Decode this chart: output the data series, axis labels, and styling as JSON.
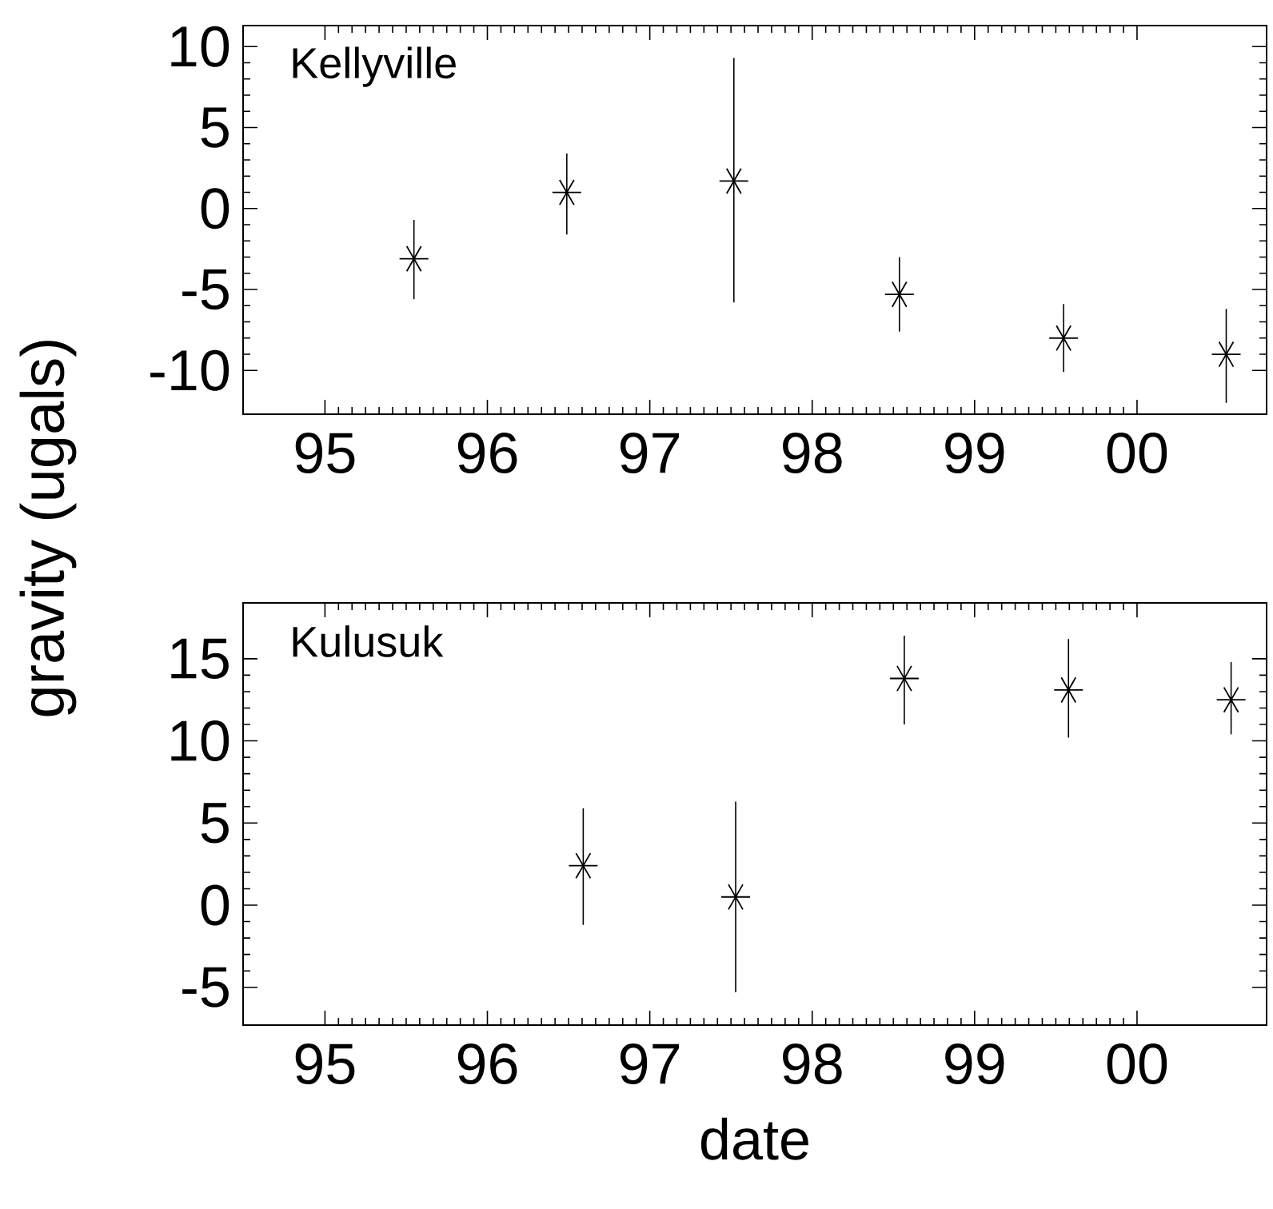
{
  "chart_data": [
    {
      "type": "scatter",
      "title": "Kellyville",
      "ylabel": "gravity (ugals)",
      "marker": "cross",
      "x": [
        "1995-07-20",
        "1996-06-28",
        "1997-07-09",
        "1998-07-16",
        "1999-07-20",
        "2000-07-20"
      ],
      "values": [
        -3.1,
        1.0,
        1.7,
        -5.3,
        -8.0,
        -9.0
      ],
      "errors": [
        [
          -5.6,
          -0.7
        ],
        [
          -1.6,
          3.4
        ],
        [
          -5.8,
          9.3
        ],
        [
          -7.6,
          -3.0
        ],
        [
          -10.1,
          -5.9
        ],
        [
          -12.0,
          -6.2
        ]
      ],
      "color": "#000000",
      "xlim": [
        "1994-07-01",
        "2000-10-19"
      ],
      "xticks": [
        {
          "value": "1995",
          "label": "95"
        },
        {
          "value": "1996",
          "label": "96"
        },
        {
          "value": "1997",
          "label": "97"
        },
        {
          "value": "1998",
          "label": "98"
        },
        {
          "value": "1999",
          "label": "99"
        },
        {
          "value": "2000",
          "label": "00"
        }
      ],
      "ylim": [
        -12.7,
        11.3
      ],
      "yticks": [
        -10,
        -5,
        0,
        5,
        10
      ]
    },
    {
      "type": "scatter",
      "title": "Kulusuk",
      "xlabel": "date",
      "marker": "cross",
      "x": [
        "1996-08-04",
        "1997-07-13",
        "1998-07-27",
        "1999-07-31",
        "2000-07-31"
      ],
      "values": [
        2.4,
        0.5,
        13.8,
        13.1,
        12.5
      ],
      "errors": [
        [
          -1.2,
          5.9
        ],
        [
          -5.3,
          6.3
        ],
        [
          11.0,
          16.4
        ],
        [
          10.2,
          16.2
        ],
        [
          10.4,
          14.8
        ]
      ],
      "color": "#000000",
      "xlim": [
        "1994-07-01",
        "2000-10-19"
      ],
      "xticks": [
        {
          "value": "1995",
          "label": "95"
        },
        {
          "value": "1996",
          "label": "96"
        },
        {
          "value": "1997",
          "label": "97"
        },
        {
          "value": "1998",
          "label": "98"
        },
        {
          "value": "1999",
          "label": "99"
        },
        {
          "value": "2000",
          "label": "00"
        }
      ],
      "ylim": [
        -7.3,
        18.4
      ],
      "yticks": [
        -5,
        0,
        5,
        10,
        15
      ]
    }
  ]
}
